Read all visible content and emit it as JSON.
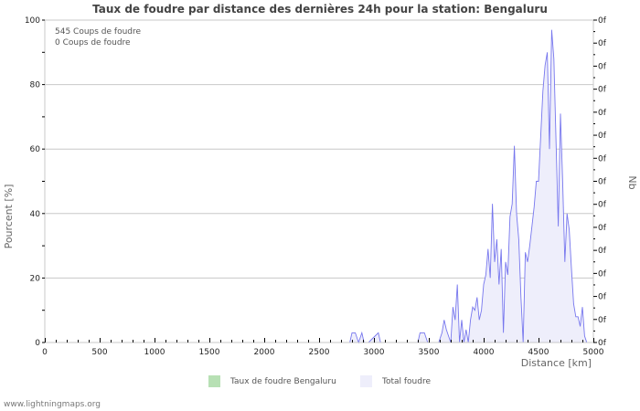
{
  "header": {
    "title": "Taux de foudre par distance des dernières 24h pour la station: Bengaluru"
  },
  "info": {
    "line1": "545  Coups de foudre",
    "line2": "0  Coups de foudre"
  },
  "legend": [
    {
      "label": "Taux de foudre Bengaluru",
      "color": "#b7e0b4"
    },
    {
      "label": "Total foudre",
      "color": "#eeeefb"
    }
  ],
  "footer": {
    "text": "www.lightningmaps.org"
  },
  "colors": {
    "line": "#7777ee",
    "fill": "#eeeefb",
    "grid": "#c8c8c8"
  },
  "chart_data": {
    "type": "area",
    "title": "Taux de foudre par distance des dernières 24h pour la station: Bengaluru",
    "xlabel": "Distance   [km]",
    "ylabel": "Pourcent   [%]",
    "y2label": "Nb",
    "xlim": [
      0,
      5000
    ],
    "ylim": [
      0,
      100
    ],
    "x_ticks": [
      "0",
      "500",
      "1000",
      "1500",
      "2000",
      "2500",
      "3000",
      "3500",
      "4000",
      "4500",
      "5000"
    ],
    "y_ticks": [
      "0",
      "20",
      "40",
      "60",
      "80",
      "100"
    ],
    "y2_ticks": [
      "0f",
      "0f",
      "0f",
      "0f",
      "0f",
      "0f",
      "0f",
      "0f",
      "0f",
      "0f",
      "0f",
      "0f",
      "0f",
      "0f",
      "0f"
    ],
    "grid": true,
    "series": [
      {
        "name": "Taux de foudre Bengaluru",
        "x": [
          0,
          5000
        ],
        "values": [
          0,
          0
        ]
      },
      {
        "name": "Total foudre",
        "x": [
          2780,
          2800,
          2830,
          2860,
          2890,
          2910,
          2950,
          3040,
          3060,
          3080,
          3400,
          3420,
          3460,
          3490,
          3590,
          3620,
          3640,
          3660,
          3700,
          3720,
          3740,
          3760,
          3780,
          3800,
          3820,
          3840,
          3860,
          3880,
          3900,
          3920,
          3940,
          3960,
          3980,
          4000,
          4020,
          4040,
          4060,
          4080,
          4100,
          4120,
          4140,
          4160,
          4180,
          4200,
          4220,
          4240,
          4260,
          4280,
          4300,
          4320,
          4340,
          4360,
          4380,
          4400,
          4420,
          4440,
          4460,
          4480,
          4500,
          4520,
          4540,
          4560,
          4580,
          4600,
          4620,
          4640,
          4660,
          4680,
          4700,
          4720,
          4740,
          4760,
          4780,
          4800,
          4820,
          4840,
          4860,
          4880,
          4900,
          4920,
          4940,
          4960,
          4980,
          5000
        ],
        "values": [
          0,
          3,
          3,
          0,
          3,
          0,
          0,
          3,
          0,
          0,
          0,
          3,
          3,
          0,
          0,
          3,
          7,
          4,
          0,
          11,
          7,
          18,
          0,
          7,
          0,
          4,
          0,
          7,
          11,
          10,
          14,
          7,
          10,
          18,
          21,
          29,
          20,
          43,
          25,
          32,
          18,
          29,
          3,
          25,
          21,
          39,
          43,
          61,
          40,
          32,
          14,
          0,
          28,
          25,
          30,
          36,
          42,
          50,
          50,
          64,
          78,
          86,
          90,
          60,
          97,
          88,
          62,
          36,
          71,
          50,
          25,
          40,
          35,
          23,
          12,
          8,
          8,
          5,
          11,
          2,
          0,
          0,
          0,
          0
        ]
      }
    ]
  }
}
